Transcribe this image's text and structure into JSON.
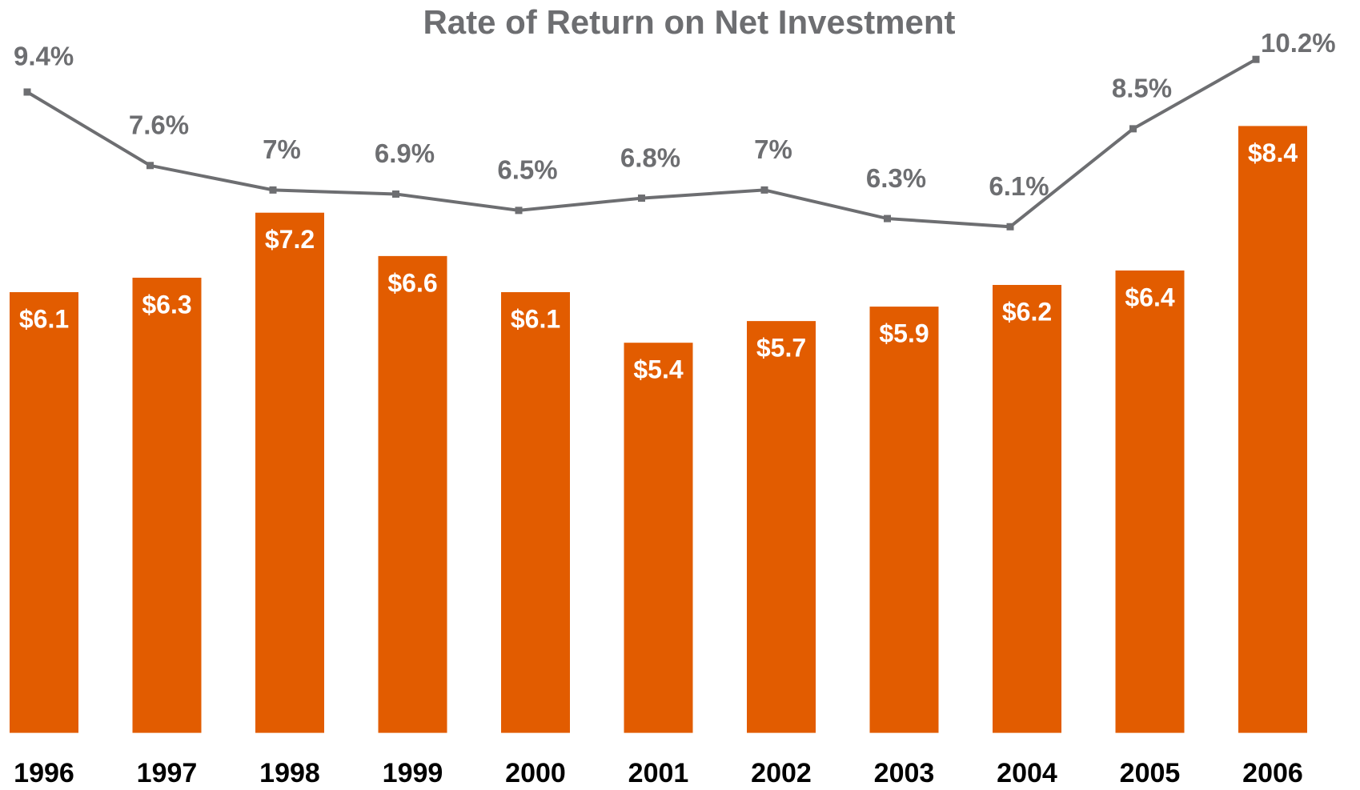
{
  "chart_data": {
    "type": "bar",
    "title": "Rate of Return on Net Investment",
    "categories": [
      "1996",
      "1997",
      "1998",
      "1999",
      "2000",
      "2001",
      "2002",
      "2003",
      "2004",
      "2005",
      "2006"
    ],
    "series": [
      {
        "type": "bar",
        "color": "#e25c00",
        "values": [
          6.1,
          6.3,
          7.2,
          6.6,
          6.1,
          5.4,
          5.7,
          5.9,
          6.2,
          6.4,
          8.4
        ],
        "value_labels": [
          "$6.1",
          "$6.3",
          "$7.2",
          "$6.6",
          "$6.1",
          "$5.4",
          "$5.7",
          "$5.9",
          "$6.2",
          "$6.4",
          "$8.4"
        ]
      },
      {
        "type": "line",
        "axis": "y2",
        "color": "#6d6e71",
        "values": [
          9.4,
          7.6,
          7,
          6.9,
          6.5,
          6.8,
          7,
          6.3,
          6.1,
          8.5,
          10.2
        ],
        "value_labels": [
          "9.4%",
          "7.6%",
          "7%",
          "6.9%",
          "6.5%",
          "6.8%",
          "7%",
          "6.3%",
          "6.1%",
          "8.5%",
          "10.2%"
        ]
      }
    ],
    "ylim": [
      0,
      10
    ],
    "y2lim": [
      -6.3,
      11.4
    ]
  }
}
